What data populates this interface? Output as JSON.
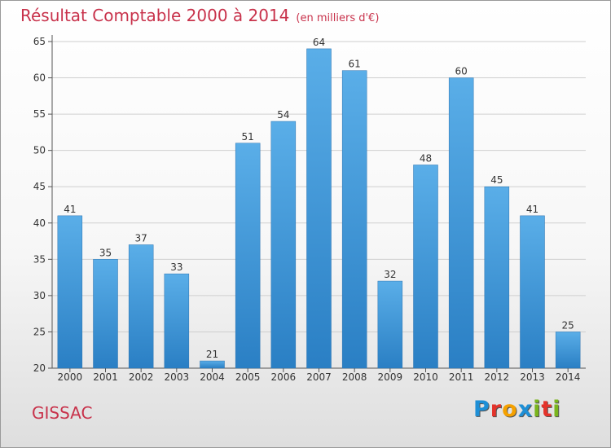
{
  "header": {
    "title": "Résultat Comptable 2000 à 2014",
    "subtitle": "(en milliers d'€)"
  },
  "footer": {
    "commune": "GISSAC"
  },
  "logo": {
    "text": "Proxiti",
    "letters": [
      "P",
      "r",
      "o",
      "x",
      "i",
      "t",
      "i"
    ],
    "colors": [
      "#1e8fd6",
      "#e4332b",
      "#f5a100",
      "#1e8fd6",
      "#7ab51d",
      "#e4332b",
      "#7ab51d"
    ]
  },
  "chart_data": {
    "type": "bar",
    "title": "Résultat Comptable 2000 à 2014",
    "subtitle": "(en milliers d'€)",
    "categories": [
      "2000",
      "2001",
      "2002",
      "2003",
      "2004",
      "2005",
      "2006",
      "2007",
      "2008",
      "2009",
      "2010",
      "2011",
      "2012",
      "2013",
      "2014"
    ],
    "values": [
      41,
      35,
      37,
      33,
      21,
      51,
      54,
      64,
      61,
      32,
      48,
      60,
      45,
      41,
      25
    ],
    "ylim": [
      20,
      65
    ],
    "yticks": [
      20,
      25,
      30,
      35,
      40,
      45,
      50,
      55,
      60,
      65
    ],
    "grid": true,
    "bar_color": "#3c95d8",
    "xlabel": "",
    "ylabel": ""
  }
}
